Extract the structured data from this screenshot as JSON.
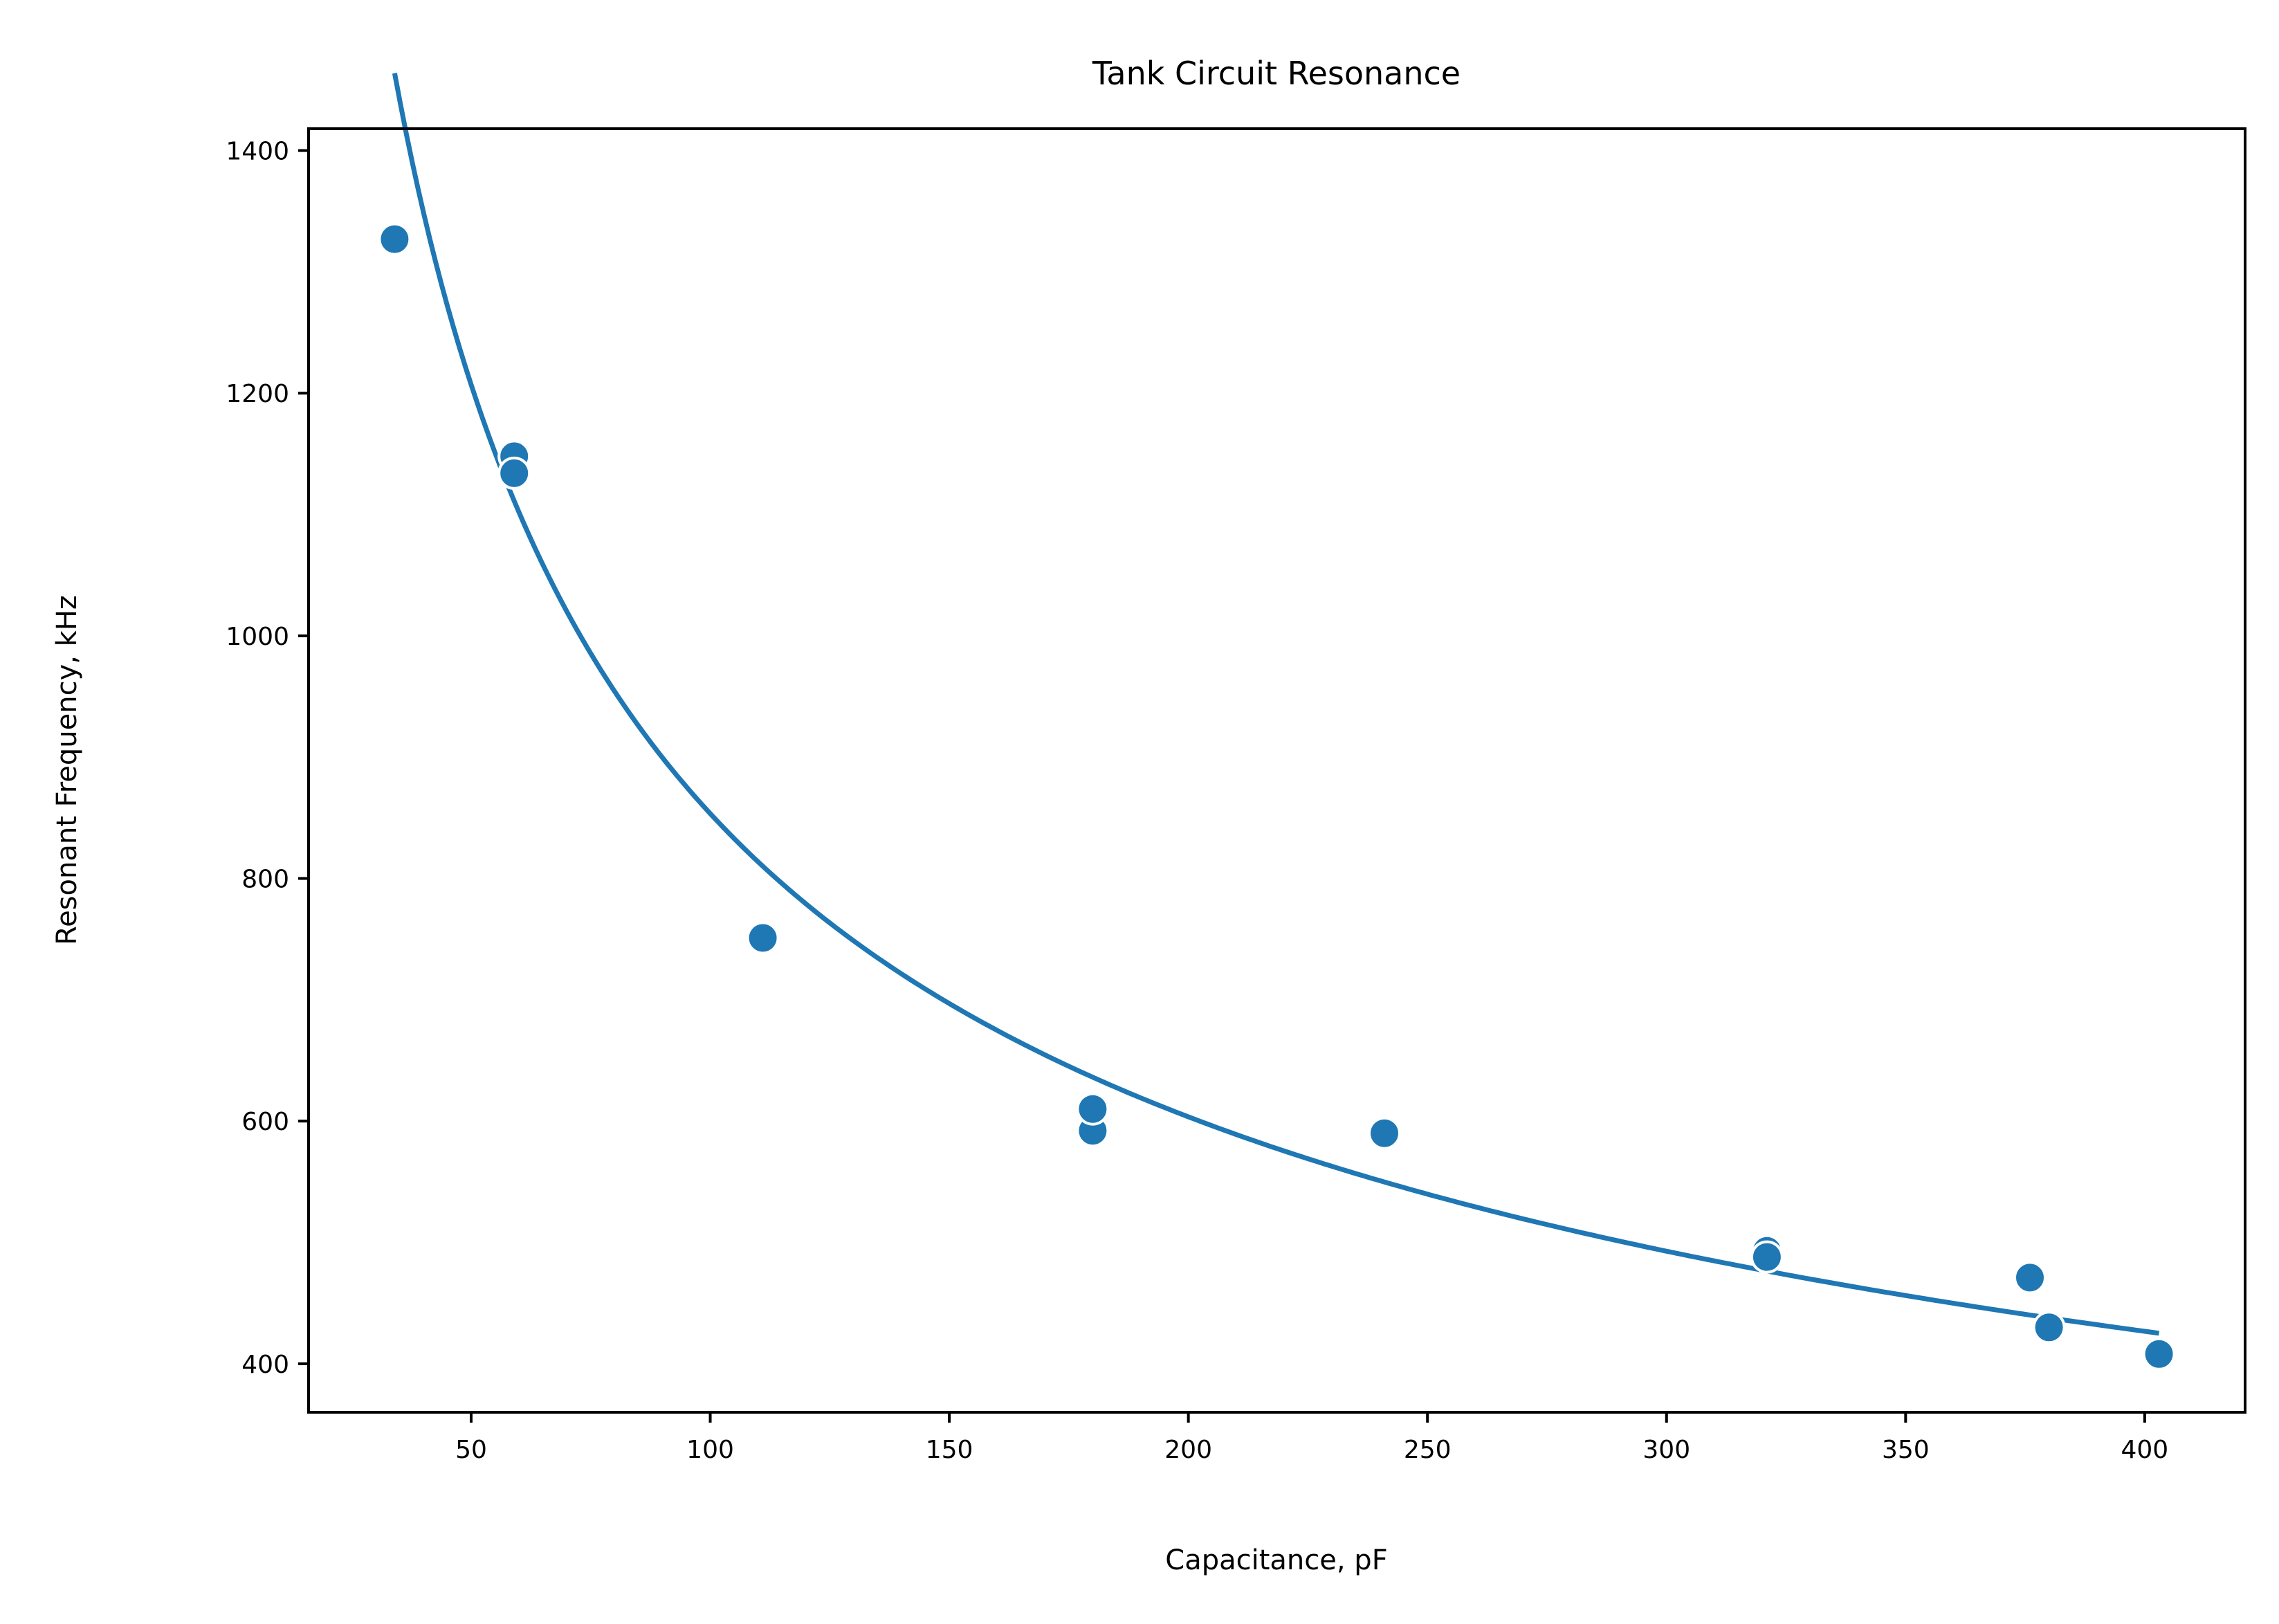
{
  "chart_data": {
    "type": "scatter",
    "title": "Tank Circuit Resonance",
    "xlabel": "Capacitance, pF",
    "ylabel": "Resonant Frequency, kHz",
    "xlim": [
      16,
      421
    ],
    "ylim": [
      360,
      1418
    ],
    "x_ticks": [
      50,
      100,
      150,
      200,
      250,
      300,
      350,
      400
    ],
    "y_ticks": [
      400,
      600,
      800,
      1000,
      1200,
      1400
    ],
    "grid": false,
    "legend": "none",
    "colors": {
      "series": "#1f77b4",
      "axes": "#000000",
      "background": "#ffffff"
    },
    "series": [
      {
        "kind": "scatter",
        "x": [
          34,
          59,
          59,
          111,
          180,
          180,
          241,
          321,
          321,
          376,
          380,
          403
        ],
        "y": [
          1327,
          1148,
          1134,
          751,
          592,
          610,
          590,
          493,
          488,
          471,
          430,
          408
        ]
      },
      {
        "kind": "line",
        "function": "inverse_sqrt",
        "coefficient": 8535,
        "x_range": [
          34,
          403
        ]
      }
    ]
  }
}
